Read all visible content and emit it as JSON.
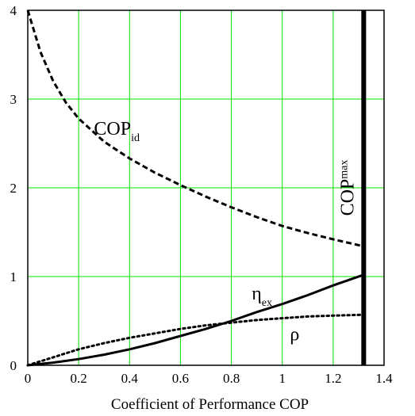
{
  "chart_data": {
    "type": "line",
    "xlabel": "Coefficient of Performance COP",
    "ylabel": "",
    "xlim": [
      0,
      1.4
    ],
    "ylim": [
      0,
      4
    ],
    "x_ticks": [
      "0",
      "0.2",
      "0.4",
      "0.6",
      "0.8",
      "1",
      "1.2",
      "1.4"
    ],
    "y_ticks": [
      "0",
      "1",
      "2",
      "3",
      "4"
    ],
    "grid": true,
    "colors": {
      "grid": "#00e000",
      "line": "#000000",
      "frame": "#000000"
    },
    "series": [
      {
        "name": "COP_id",
        "style": "dashed",
        "x": [
          0.0,
          0.05,
          0.1,
          0.15,
          0.2,
          0.3,
          0.4,
          0.5,
          0.6,
          0.7,
          0.8,
          0.9,
          1.0,
          1.1,
          1.2,
          1.32
        ],
        "y": [
          4.0,
          3.53,
          3.2,
          2.96,
          2.78,
          2.52,
          2.33,
          2.17,
          2.03,
          1.9,
          1.78,
          1.67,
          1.57,
          1.49,
          1.42,
          1.34
        ]
      },
      {
        "name": "η_ex",
        "style": "solid",
        "x": [
          0.0,
          0.1,
          0.2,
          0.3,
          0.4,
          0.5,
          0.6,
          0.7,
          0.8,
          0.9,
          1.0,
          1.1,
          1.2,
          1.32
        ],
        "y": [
          0.0,
          0.03,
          0.07,
          0.12,
          0.18,
          0.25,
          0.33,
          0.41,
          0.5,
          0.6,
          0.69,
          0.79,
          0.9,
          1.02
        ]
      },
      {
        "name": "ρ",
        "style": "dotted",
        "x": [
          0.0,
          0.1,
          0.2,
          0.3,
          0.4,
          0.5,
          0.6,
          0.7,
          0.8,
          0.9,
          1.0,
          1.1,
          1.2,
          1.32
        ],
        "y": [
          0.0,
          0.09,
          0.18,
          0.25,
          0.31,
          0.36,
          0.41,
          0.45,
          0.48,
          0.51,
          0.53,
          0.55,
          0.56,
          0.57
        ]
      }
    ],
    "vertical_lines": [
      {
        "name": "COP_max",
        "x": 1.32
      }
    ],
    "annotations": {
      "cop_id": {
        "main": "COP",
        "sub": "id",
        "x": 0.26,
        "y": 2.6
      },
      "eta_ex": {
        "main": "η",
        "sub": "ex",
        "x": 0.88,
        "y": 0.74
      },
      "rho": {
        "main": "ρ",
        "x": 1.03,
        "y": 0.28
      },
      "cop_max": {
        "main": "COP",
        "sub": "max",
        "x": 1.28,
        "y": 2.0
      }
    }
  }
}
